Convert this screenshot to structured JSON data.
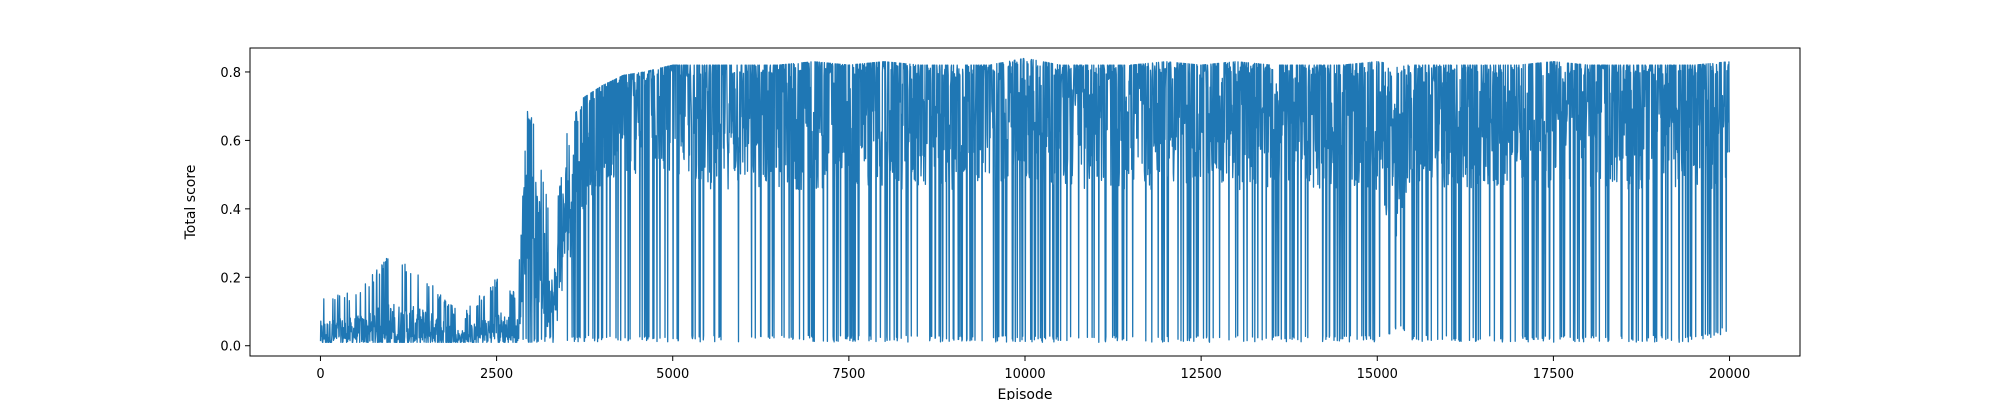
{
  "chart_data": {
    "type": "line",
    "title": "",
    "xlabel": "Episode",
    "ylabel": "Total score",
    "xlim": [
      -1000,
      21000
    ],
    "ylim": [
      -0.03,
      0.87
    ],
    "x_ticks": [
      0,
      2500,
      5000,
      7500,
      10000,
      12500,
      15000,
      17500,
      20000
    ],
    "x_tick_labels": [
      "0",
      "2500",
      "5000",
      "7500",
      "10000",
      "12500",
      "15000",
      "17500",
      "20000"
    ],
    "y_ticks": [
      0.0,
      0.2,
      0.4,
      0.6,
      0.8
    ],
    "y_tick_labels": [
      "0.0",
      "0.2",
      "0.4",
      "0.6",
      "0.8"
    ],
    "grid": false,
    "line_color": "#1f77b4",
    "series": [
      {
        "x": [
          0,
          500,
          1000,
          1500,
          2000,
          2500,
          2800,
          2900,
          3000,
          3300,
          3500,
          3700,
          4000,
          4300,
          4600,
          5000,
          5500,
          6000,
          6500,
          7000,
          7500,
          8000,
          8500,
          9000,
          9500,
          10000,
          10500,
          11000,
          11500,
          12000,
          12500,
          13000,
          13500,
          14000,
          14500,
          15000,
          15300,
          15500,
          16000,
          16500,
          17000,
          17500,
          18000,
          18500,
          19000,
          19500,
          20000
        ],
        "y_max": [
          0.15,
          0.16,
          0.27,
          0.2,
          0.09,
          0.2,
          0.15,
          0.69,
          0.68,
          0.34,
          0.62,
          0.72,
          0.76,
          0.79,
          0.8,
          0.82,
          0.82,
          0.82,
          0.82,
          0.83,
          0.82,
          0.83,
          0.82,
          0.82,
          0.82,
          0.84,
          0.82,
          0.82,
          0.82,
          0.83,
          0.82,
          0.83,
          0.82,
          0.82,
          0.82,
          0.83,
          0.82,
          0.82,
          0.82,
          0.82,
          0.82,
          0.83,
          0.82,
          0.82,
          0.82,
          0.82,
          0.83
        ],
        "y_min": [
          0.01,
          0.01,
          0.01,
          0.01,
          0.01,
          0.01,
          0.01,
          0.01,
          0.01,
          0.01,
          0.01,
          0.01,
          0.01,
          0.01,
          0.01,
          0.01,
          0.01,
          0.01,
          0.01,
          0.01,
          0.01,
          0.01,
          0.01,
          0.01,
          0.01,
          0.01,
          0.01,
          0.01,
          0.01,
          0.01,
          0.01,
          0.01,
          0.01,
          0.01,
          0.01,
          0.01,
          0.05,
          0.01,
          0.01,
          0.01,
          0.01,
          0.01,
          0.01,
          0.01,
          0.01,
          0.01,
          0.04
        ],
        "y_typical": [
          0.03,
          0.04,
          0.05,
          0.05,
          0.02,
          0.05,
          0.04,
          0.4,
          0.35,
          0.1,
          0.4,
          0.6,
          0.7,
          0.72,
          0.74,
          0.75,
          0.7,
          0.7,
          0.7,
          0.7,
          0.7,
          0.7,
          0.7,
          0.7,
          0.72,
          0.72,
          0.7,
          0.7,
          0.7,
          0.7,
          0.7,
          0.7,
          0.7,
          0.7,
          0.7,
          0.7,
          0.5,
          0.72,
          0.7,
          0.7,
          0.7,
          0.7,
          0.7,
          0.7,
          0.7,
          0.7,
          0.7
        ]
      }
    ]
  }
}
